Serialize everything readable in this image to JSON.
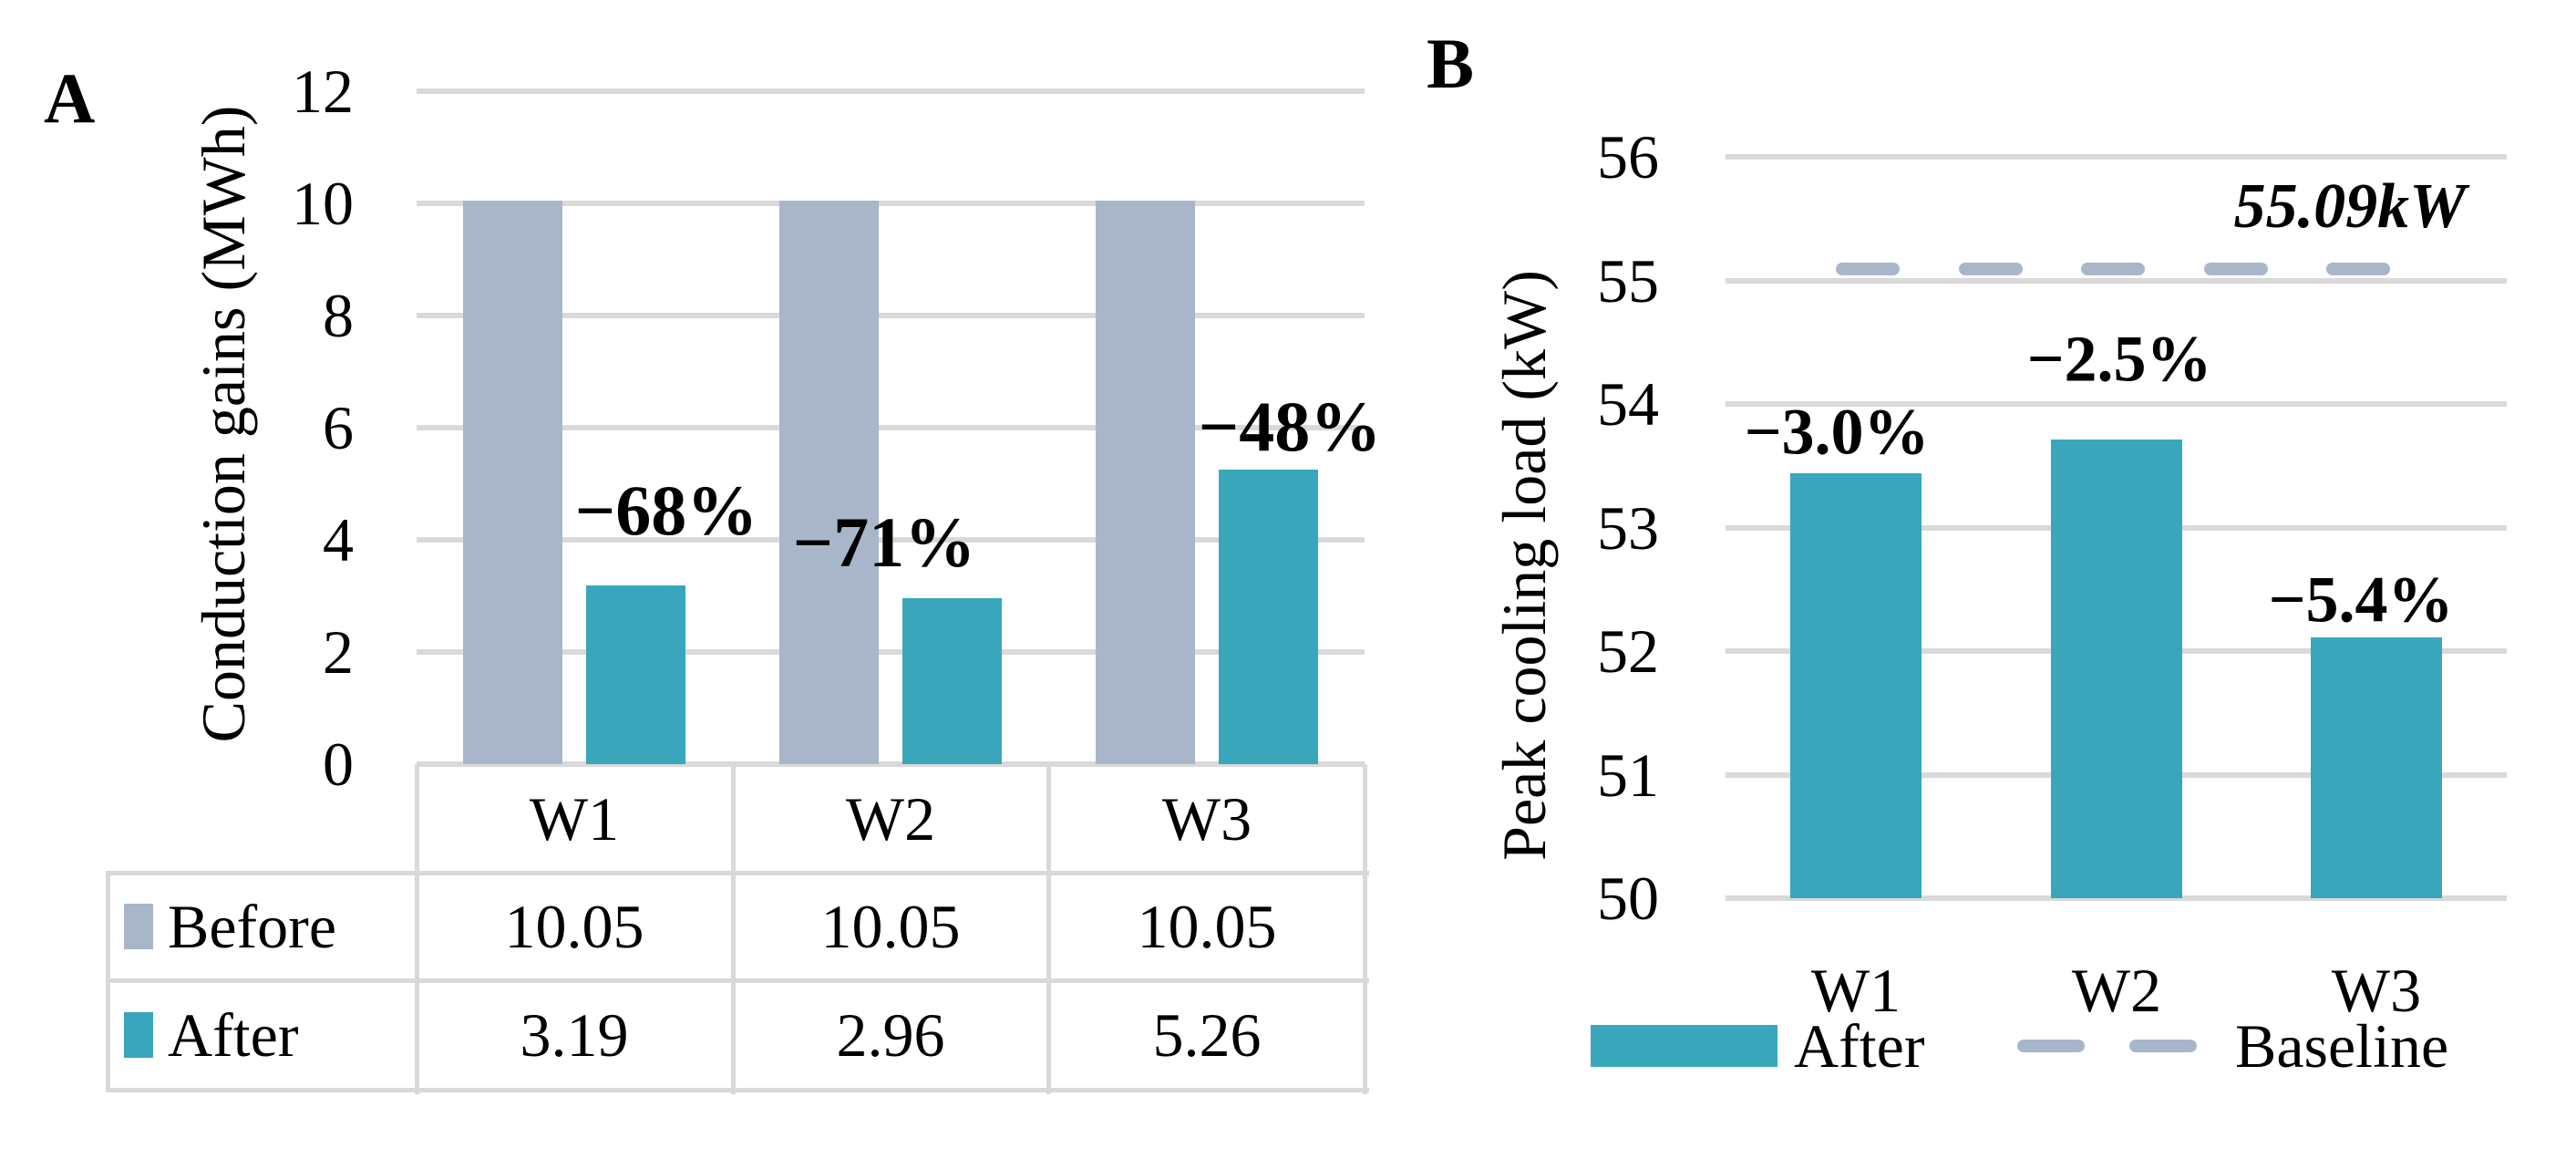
{
  "figure_labels": {
    "panelA": "A",
    "panelB": "B"
  },
  "colors": {
    "before_gray_blue": "#A9B6CA",
    "after_teal": "#3AA6BC",
    "gridline_gray": "#D9D9D9",
    "table_border_gray": "#D9D9D9",
    "text_black": "#000000"
  },
  "chart_data": [
    {
      "type": "bar",
      "panel": "A",
      "title": "",
      "xlabel": "",
      "ylabel": "Conduction gains (MWh)",
      "categories": [
        "W1",
        "W2",
        "W3"
      ],
      "series": [
        {
          "name": "Before",
          "color": "#A9B6CA",
          "values": [
            10.05,
            10.05,
            10.05
          ]
        },
        {
          "name": "After",
          "color": "#3AA6BC",
          "values": [
            3.19,
            2.96,
            5.26
          ]
        }
      ],
      "annotations": [
        {
          "text": "−68%",
          "category": "W1"
        },
        {
          "text": "−71%",
          "category": "W2"
        },
        {
          "text": "−48%",
          "category": "W3"
        }
      ],
      "ylim": [
        0,
        12
      ],
      "ytick_step": 2,
      "yticks": [
        "12",
        "10",
        "8",
        "6",
        "4",
        "2",
        "0"
      ],
      "grid": "horizontal",
      "legend_position": "data-table-left",
      "data_table": {
        "rows": [
          {
            "label": "Before",
            "values": [
              "10.05",
              "10.05",
              "10.05"
            ]
          },
          {
            "label": "After",
            "values": [
              "3.19",
              "2.96",
              "5.26"
            ]
          }
        ]
      }
    },
    {
      "type": "bar",
      "panel": "B",
      "title": "",
      "xlabel": "",
      "ylabel": "Peak cooling load (kW)",
      "categories": [
        "W1",
        "W2",
        "W3"
      ],
      "series": [
        {
          "name": "After",
          "color": "#3AA6BC",
          "values": [
            53.44,
            53.71,
            52.11
          ]
        }
      ],
      "baseline": {
        "name": "Baseline",
        "value": 55.09,
        "label": "55.09kW",
        "color": "#A9B6CA",
        "style": "dashed"
      },
      "annotations": [
        {
          "text": "−3.0%",
          "category": "W1"
        },
        {
          "text": "−2.5%",
          "category": "W2"
        },
        {
          "text": "−5.4%",
          "category": "W3"
        }
      ],
      "ylim": [
        50,
        56
      ],
      "ytick_step": 1,
      "yticks": [
        "56",
        "55",
        "54",
        "53",
        "52",
        "51",
        "50"
      ],
      "grid": "horizontal",
      "legend": {
        "position": "bottom",
        "entries": [
          "After",
          "Baseline"
        ]
      }
    }
  ]
}
